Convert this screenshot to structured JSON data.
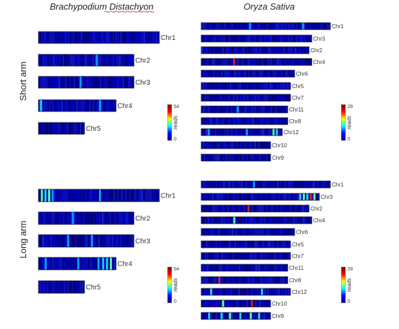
{
  "chart_data": {
    "type": "heatmap",
    "colormap": [
      "#00008f",
      "#0000ff",
      "#00ffff",
      "#ffff00",
      "#ff0000",
      "#800000"
    ],
    "columns": [
      {
        "key": "bd",
        "title": "Brachypodium Distachyon",
        "title_underline": "Distachyon"
      },
      {
        "key": "os",
        "title": "Oryza Sativa"
      }
    ],
    "panels": [
      {
        "row": "short",
        "arm_label": "Short  arm",
        "species": "bd",
        "colorbar": {
          "max": 54,
          "min": 0,
          "label": "reads"
        },
        "chromosomes": [
          {
            "name": "Chr1",
            "hot": [],
            "mid": []
          },
          {
            "name": "Chr2",
            "hot": [],
            "mid": [
              [
                0.6,
                1
              ]
            ]
          },
          {
            "name": "Chr3",
            "hot": [],
            "mid": [
              [
                0.43,
                1
              ]
            ]
          },
          {
            "name": "Chr4",
            "hot": [],
            "mid": [
              [
                0.02,
                2
              ],
              [
                0.78,
                1
              ]
            ]
          },
          {
            "name": "Chr5",
            "hot": [],
            "mid": []
          }
        ]
      },
      {
        "row": "short",
        "species": "os",
        "colorbar": {
          "max": 29,
          "min": 0,
          "label": "reads"
        },
        "chromosomes": [
          {
            "name": "Chr1",
            "hot": [],
            "mid": [
              [
                0.37,
                1
              ],
              [
                0.78,
                1
              ]
            ]
          },
          {
            "name": "Chr3",
            "hot": [],
            "mid": []
          },
          {
            "name": "Chr2",
            "hot": [],
            "mid": []
          },
          {
            "name": "Chr4",
            "hot": [
              [
                0.29,
                4
              ]
            ],
            "mid": []
          },
          {
            "name": "Chr6",
            "hot": [],
            "mid": []
          },
          {
            "name": "Chr5",
            "hot": [],
            "mid": []
          },
          {
            "name": "Chr7",
            "hot": [],
            "mid": []
          },
          {
            "name": "Chr11",
            "hot": [],
            "mid": [
              [
                0.41,
                1
              ]
            ]
          },
          {
            "name": "Chr8",
            "hot": [],
            "mid": []
          },
          {
            "name": "Chr12",
            "hot": [],
            "mid": [
              [
                0.08,
                1
              ],
              [
                0.55,
                1
              ],
              [
                0.88,
                3
              ],
              [
                0.92,
                2
              ]
            ]
          },
          {
            "name": "Chr10",
            "hot": [],
            "mid": []
          },
          {
            "name": "Chr9",
            "hot": [],
            "mid": []
          }
        ]
      },
      {
        "row": "long",
        "arm_label": "Long  arm",
        "species": "bd",
        "colorbar": {
          "max": 54,
          "min": 0,
          "label": "reads"
        },
        "chromosomes": [
          {
            "name": "Chr1",
            "hot": [],
            "mid": [
              [
                0.02,
                3
              ],
              [
                0.05,
                2
              ],
              [
                0.08,
                3
              ],
              [
                0.11,
                1
              ],
              [
                0.5,
                1
              ]
            ]
          },
          {
            "name": "Chr2",
            "hot": [],
            "mid": [
              [
                0.35,
                1
              ]
            ]
          },
          {
            "name": "Chr3",
            "hot": [],
            "mid": [
              [
                0.3,
                1
              ],
              [
                0.55,
                1
              ]
            ]
          },
          {
            "name": "Chr4",
            "hot": [],
            "mid": [
              [
                0.08,
                1
              ],
              [
                0.5,
                1
              ],
              [
                0.76,
                1
              ],
              [
                0.82,
                2
              ],
              [
                0.87,
                2
              ],
              [
                0.92,
                3
              ]
            ]
          },
          {
            "name": "Chr5",
            "hot": [],
            "mid": []
          }
        ]
      },
      {
        "row": "long",
        "species": "os",
        "colorbar": {
          "max": 29,
          "min": 0,
          "label": "reads"
        },
        "chromosomes": [
          {
            "name": "Chr1",
            "hot": [],
            "mid": [
              [
                0.4,
                1
              ]
            ]
          },
          {
            "name": "Chr3",
            "hot": [
              [
                0.92,
                4
              ]
            ],
            "mid": [
              [
                0.83,
                2
              ],
              [
                0.86,
                3
              ],
              [
                0.89,
                2
              ],
              [
                0.95,
                3
              ]
            ]
          },
          {
            "name": "Chr2",
            "hot": [
              [
                0.43,
                4
              ]
            ],
            "mid": []
          },
          {
            "name": "Chr4",
            "hot": [],
            "mid": [
              [
                0.29,
                3
              ]
            ]
          },
          {
            "name": "Chr6",
            "hot": [],
            "mid": []
          },
          {
            "name": "Chr5",
            "hot": [],
            "mid": []
          },
          {
            "name": "Chr7",
            "hot": [],
            "mid": []
          },
          {
            "name": "Chr11",
            "hot": [],
            "mid": []
          },
          {
            "name": "Chr8",
            "hot": [
              [
                0.2,
                4
              ]
            ],
            "mid": []
          },
          {
            "name": "Chr12",
            "hot": [],
            "mid": [
              [
                0.1,
                2
              ],
              [
                0.67,
                2
              ]
            ]
          },
          {
            "name": "Chr10",
            "hot": [
              [
                0.72,
                4
              ]
            ],
            "mid": [
              [
                0.3,
                3
              ]
            ]
          },
          {
            "name": "Chr9",
            "hot": [],
            "mid": [
              [
                0.1,
                2
              ],
              [
                0.28,
                2
              ],
              [
                0.4,
                3
              ],
              [
                0.55,
                2
              ],
              [
                0.7,
                3
              ],
              [
                0.82,
                2
              ]
            ]
          }
        ]
      }
    ]
  }
}
